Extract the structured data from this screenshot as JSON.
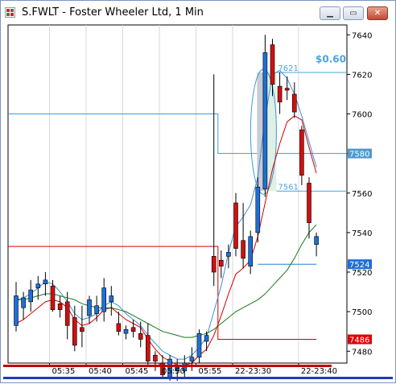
{
  "window": {
    "title": "S.FWLT - Foster Wheeler Ltd, 1 Min",
    "minimize_icon": "minimize-icon",
    "restore_icon": "restore-icon",
    "close_icon": "close-icon"
  },
  "chart_data": {
    "type": "candlestick",
    "symbol": "S.FWLT",
    "interval": "1 Min",
    "y_ticks": [
      "7640",
      "7620",
      "7600",
      "7580",
      "7560",
      "7540",
      "7520",
      "7500",
      "7480"
    ],
    "ylim": [
      7474,
      7645
    ],
    "x_ticks": [
      "05:35",
      "05:40",
      "05:45",
      "05:50",
      "05:55",
      "22-23:30",
      "22-23:40"
    ],
    "price_markers": [
      {
        "label": "7580",
        "value": 7580,
        "color": "#4e9ad0"
      },
      {
        "label": "7524",
        "value": 7524,
        "color": "#1e6fd9"
      },
      {
        "label": "7486",
        "value": 7486,
        "color": "#e00000"
      }
    ],
    "annotations": [
      {
        "text": "$0.60",
        "color": "#4aa3e0"
      },
      {
        "text": "7621",
        "value": 7621,
        "color": "#4aa3e0"
      },
      {
        "text": "7561",
        "value": 7561,
        "color": "#4aa3e0"
      }
    ],
    "candles": [
      {
        "o": 7493,
        "h": 7515,
        "l": 7490,
        "c": 7508,
        "dir": "up"
      },
      {
        "o": 7502,
        "h": 7510,
        "l": 7496,
        "c": 7507,
        "dir": "up"
      },
      {
        "o": 7505,
        "h": 7516,
        "l": 7500,
        "c": 7511,
        "dir": "up"
      },
      {
        "o": 7512,
        "h": 7518,
        "l": 7506,
        "c": 7514,
        "dir": "up"
      },
      {
        "o": 7514,
        "h": 7520,
        "l": 7508,
        "c": 7516,
        "dir": "up"
      },
      {
        "o": 7513,
        "h": 7516,
        "l": 7500,
        "c": 7501,
        "dir": "down"
      },
      {
        "o": 7504,
        "h": 7508,
        "l": 7497,
        "c": 7501,
        "dir": "down"
      },
      {
        "o": 7505,
        "h": 7510,
        "l": 7486,
        "c": 7493,
        "dir": "down"
      },
      {
        "o": 7497,
        "h": 7503,
        "l": 7480,
        "c": 7483,
        "dir": "down"
      },
      {
        "o": 7492,
        "h": 7503,
        "l": 7482,
        "c": 7490,
        "dir": "down"
      },
      {
        "o": 7498,
        "h": 7508,
        "l": 7494,
        "c": 7506,
        "dir": "up"
      },
      {
        "o": 7499,
        "h": 7508,
        "l": 7495,
        "c": 7503,
        "dir": "up"
      },
      {
        "o": 7500,
        "h": 7517,
        "l": 7495,
        "c": 7512,
        "dir": "up"
      },
      {
        "o": 7505,
        "h": 7513,
        "l": 7498,
        "c": 7508,
        "dir": "up"
      },
      {
        "o": 7494,
        "h": 7500,
        "l": 7488,
        "c": 7490,
        "dir": "down"
      },
      {
        "o": 7489,
        "h": 7493,
        "l": 7486,
        "c": 7491,
        "dir": "up"
      },
      {
        "o": 7492,
        "h": 7496,
        "l": 7487,
        "c": 7490,
        "dir": "down"
      },
      {
        "o": 7489,
        "h": 7495,
        "l": 7482,
        "c": 7486,
        "dir": "down"
      },
      {
        "o": 7488,
        "h": 7494,
        "l": 7473,
        "c": 7475,
        "dir": "down"
      },
      {
        "o": 7478,
        "h": 7480,
        "l": 7470,
        "c": 7475,
        "dir": "down"
      },
      {
        "o": 7474,
        "h": 7478,
        "l": 7466,
        "c": 7468,
        "dir": "down"
      },
      {
        "o": 7467,
        "h": 7478,
        "l": 7462,
        "c": 7476,
        "dir": "up"
      },
      {
        "o": 7470,
        "h": 7476,
        "l": 7464,
        "c": 7472,
        "dir": "up"
      },
      {
        "o": 7470,
        "h": 7478,
        "l": 7466,
        "c": 7474,
        "dir": "up"
      },
      {
        "o": 7475,
        "h": 7482,
        "l": 7470,
        "c": 7477,
        "dir": "up"
      },
      {
        "o": 7477,
        "h": 7491,
        "l": 7474,
        "c": 7489,
        "dir": "up"
      },
      {
        "o": 7485,
        "h": 7490,
        "l": 7480,
        "c": 7488,
        "dir": "up"
      },
      {
        "o": 7520,
        "h": 7620,
        "l": 7513,
        "c": 7528,
        "dir": "down"
      },
      {
        "o": 7523,
        "h": 7531,
        "l": 7517,
        "c": 7526,
        "dir": "down"
      },
      {
        "o": 7528,
        "h": 7534,
        "l": 7522,
        "c": 7530,
        "dir": "up"
      },
      {
        "o": 7532,
        "h": 7560,
        "l": 7528,
        "c": 7555,
        "dir": "down"
      },
      {
        "o": 7536,
        "h": 7555,
        "l": 7522,
        "c": 7527,
        "dir": "down"
      },
      {
        "o": 7523,
        "h": 7541,
        "l": 7519,
        "c": 7538,
        "dir": "up"
      },
      {
        "o": 7540,
        "h": 7568,
        "l": 7535,
        "c": 7563,
        "dir": "up"
      },
      {
        "o": 7562,
        "h": 7640,
        "l": 7558,
        "c": 7631,
        "dir": "up"
      },
      {
        "o": 7635,
        "h": 7638,
        "l": 7609,
        "c": 7615,
        "dir": "down"
      },
      {
        "o": 7614,
        "h": 7621,
        "l": 7600,
        "c": 7606,
        "dir": "down"
      },
      {
        "o": 7612,
        "h": 7619,
        "l": 7607,
        "c": 7613,
        "dir": "down"
      },
      {
        "o": 7610,
        "h": 7616,
        "l": 7598,
        "c": 7601,
        "dir": "down"
      },
      {
        "o": 7592,
        "h": 7594,
        "l": 7564,
        "c": 7569,
        "dir": "down"
      },
      {
        "o": 7565,
        "h": 7568,
        "l": 7537,
        "c": 7545,
        "dir": "down"
      },
      {
        "o": 7534,
        "h": 7540,
        "l": 7528,
        "c": 7538,
        "dir": "up"
      }
    ],
    "indicators": [
      {
        "name": "",
        "color": "#d00000",
        "values": [
          7494,
          7496,
          7499,
          7502,
          7505,
          7506,
          7505,
          7502,
          7496,
          7493,
          7494,
          7497,
          7501,
          7502,
          7499,
          7496,
          7494,
          7492,
          7486,
          7481,
          7477,
          7475,
          7473,
          7473,
          7474,
          7478,
          7481,
          7488,
          7498,
          7509,
          7519,
          7522,
          7526,
          7538,
          7555,
          7572,
          7585,
          7596,
          7599,
          7597,
          7583,
          7570
        ]
      },
      {
        "name": "",
        "color": "#3d8fd6",
        "values": [
          7506,
          7507,
          7509,
          7512,
          7515,
          7514,
          7510,
          7505,
          7499,
          7496,
          7497,
          7499,
          7503,
          7505,
          7503,
          7499,
          7496,
          7493,
          7488,
          7484,
          7480,
          7478,
          7476,
          7476,
          7478,
          7482,
          7487,
          7500,
          7513,
          7530,
          7543,
          7548,
          7554,
          7568,
          7598,
          7620,
          7622,
          7618,
          7610,
          7599,
          7586,
          7573
        ]
      },
      {
        "name": "",
        "color": "#1a7a1a",
        "values": [
          7506,
          7506,
          7507,
          7508,
          7509,
          7509,
          7508,
          7507,
          7506,
          7504,
          7503,
          7502,
          7502,
          7502,
          7501,
          7500,
          7498,
          7496,
          7494,
          7492,
          7490,
          7489,
          7488,
          7487,
          7487,
          7488,
          7489,
          7491,
          7494,
          7497,
          7500,
          7502,
          7504,
          7506,
          7509,
          7513,
          7517,
          7521,
          7527,
          7534,
          7540,
          7544
        ]
      }
    ]
  }
}
